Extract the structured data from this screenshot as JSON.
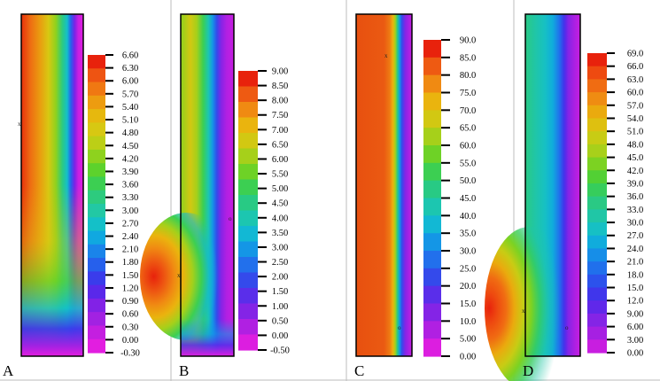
{
  "figure": {
    "panels": [
      {
        "letter": "A",
        "legend_colors": [
          "#e8220c",
          "#ee5412",
          "#f07812",
          "#ed9c10",
          "#e6b80e",
          "#d7c812",
          "#bccf16",
          "#8ed21e",
          "#5dd22c",
          "#3ccf52",
          "#2dcb7e",
          "#22c8a4",
          "#14c0c8",
          "#10a8e0",
          "#1a84ea",
          "#2660ec",
          "#3a3ceb",
          "#5a28ea",
          "#8222e6",
          "#a222e2",
          "#c41fe0",
          "#e21ee0"
        ],
        "legend_labels": [
          "6.60",
          "6.30",
          "6.00",
          "5.70",
          "5.40",
          "5.10",
          "4.80",
          "4.50",
          "4.20",
          "3.90",
          "3.60",
          "3.30",
          "3.00",
          "2.70",
          "2.40",
          "2.10",
          "1.80",
          "1.50",
          "1.20",
          "0.90",
          "0.60",
          "0.30",
          "0.00",
          "-0.30"
        ]
      },
      {
        "letter": "B",
        "legend_colors": [
          "#e8220c",
          "#ee5a12",
          "#f08a12",
          "#eab40e",
          "#d2c812",
          "#a6d01a",
          "#6ed226",
          "#3ccf52",
          "#28ca84",
          "#1cc6b0",
          "#12b8d4",
          "#1496e6",
          "#2270ec",
          "#344aeb",
          "#5a2eea",
          "#8424e6",
          "#b020e2",
          "#dc1ee0"
        ],
        "legend_labels": [
          "9.00",
          "8.50",
          "8.00",
          "7.50",
          "7.00",
          "6.50",
          "6.00",
          "5.50",
          "5.00",
          "4.50",
          "4.00",
          "3.50",
          "3.00",
          "2.50",
          "2.00",
          "1.50",
          "1.00",
          "0.50",
          "0.00",
          "-0.50"
        ]
      },
      {
        "letter": "C",
        "legend_colors": [
          "#e8220c",
          "#ee5a12",
          "#f08a12",
          "#eab40e",
          "#d2c812",
          "#a6d01a",
          "#6ed226",
          "#3ccf52",
          "#28ca84",
          "#1cc6b0",
          "#12b8d4",
          "#1496e6",
          "#2270ec",
          "#344aeb",
          "#5a2eea",
          "#8424e6",
          "#b020e2",
          "#dc1ee0"
        ],
        "legend_labels": [
          "90.0",
          "85.0",
          "80.0",
          "75.0",
          "70.0",
          "65.0",
          "60.0",
          "55.0",
          "50.0",
          "45.0",
          "40.0",
          "35.0",
          "30.0",
          "25.0",
          "20.0",
          "15.0",
          "10.0",
          "5.00",
          "0.00"
        ]
      },
      {
        "letter": "D",
        "legend_colors": [
          "#e8220c",
          "#ee4a10",
          "#f06c12",
          "#ef8c12",
          "#eaaa0e",
          "#dec010",
          "#c8cc14",
          "#a8d01a",
          "#7cd222",
          "#52d034",
          "#36cd5c",
          "#2ac984",
          "#20c6a6",
          "#16c0c4",
          "#10acdc",
          "#168ee8",
          "#2070ec",
          "#2c52ec",
          "#4036eb",
          "#6028ea",
          "#8424e6",
          "#a620e2",
          "#c81ee0"
        ],
        "legend_labels": [
          "69.0",
          "66.0",
          "63.0",
          "60.0",
          "57.0",
          "54.0",
          "51.0",
          "48.0",
          "45.0",
          "42.0",
          "39.0",
          "36.0",
          "33.0",
          "30.0",
          "27.0",
          "24.0",
          "21.0",
          "18.0",
          "15.0",
          "12.0",
          "9.00",
          "6.00",
          "3.00",
          "0.00"
        ]
      }
    ]
  }
}
